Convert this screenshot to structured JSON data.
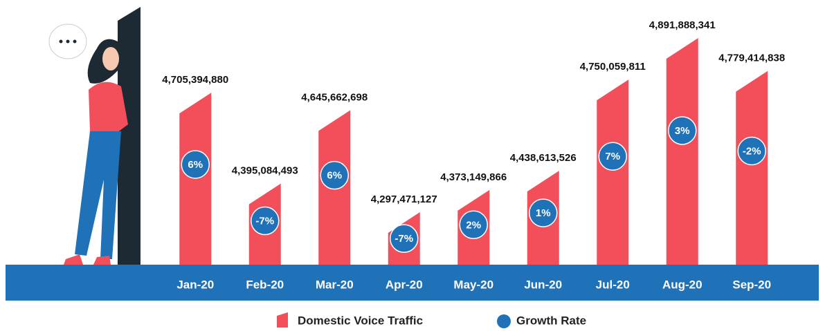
{
  "chart_data": {
    "type": "bar",
    "categories": [
      "Jan-20",
      "Feb-20",
      "Mar-20",
      "Apr-20",
      "May-20",
      "Jun-20",
      "Jul-20",
      "Aug-20",
      "Sep-20"
    ],
    "series": [
      {
        "name": "Domestic Voice Traffic",
        "color": "#f24f5a",
        "values": [
          4705394880,
          4395084493,
          4645662698,
          4297471127,
          4373149866,
          4438613526,
          4750059811,
          4891888341,
          4779414838
        ],
        "value_labels": [
          "4,705,394,880",
          "4,395,084,493",
          "4,645,662,698",
          "4,297,471,127",
          "4,373,149,866",
          "4,438,613,526",
          "4,750,059,811",
          "4,891,888,341",
          "4,779,414,838"
        ]
      },
      {
        "name": "Growth Rate",
        "color": "#1f72b8",
        "values": [
          6,
          -7,
          6,
          -7,
          2,
          1,
          7,
          3,
          -2
        ],
        "value_labels": [
          "6%",
          "-7%",
          "6%",
          "-7%",
          "2%",
          "1%",
          "7%",
          "3%",
          "-2%"
        ]
      }
    ]
  }
}
